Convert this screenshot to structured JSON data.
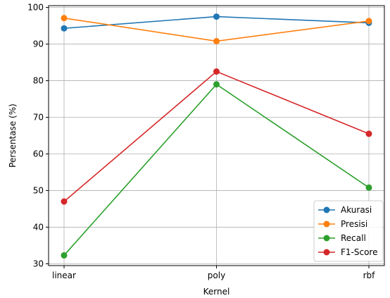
{
  "chart_data": {
    "type": "line",
    "title": "",
    "xlabel": "Kernel",
    "ylabel": "Persentase (%)",
    "categories": [
      "linear",
      "poly",
      "rbf"
    ],
    "ylim": [
      29.5,
      100.5
    ],
    "yticks": [
      30,
      40,
      50,
      60,
      70,
      80,
      90,
      100
    ],
    "grid": true,
    "legend_position": "lower-right",
    "series": [
      {
        "name": "Akurasi",
        "color": "#1f77b4",
        "values": [
          94.3,
          97.5,
          95.8
        ]
      },
      {
        "name": "Presisi",
        "color": "#ff7f0e",
        "values": [
          97.1,
          90.8,
          96.3
        ]
      },
      {
        "name": "Recall",
        "color": "#2ca02c",
        "values": [
          32.3,
          79.0,
          50.8
        ]
      },
      {
        "name": "F1-Score",
        "color": "#d62728",
        "values": [
          47.0,
          82.5,
          65.5
        ]
      }
    ]
  }
}
